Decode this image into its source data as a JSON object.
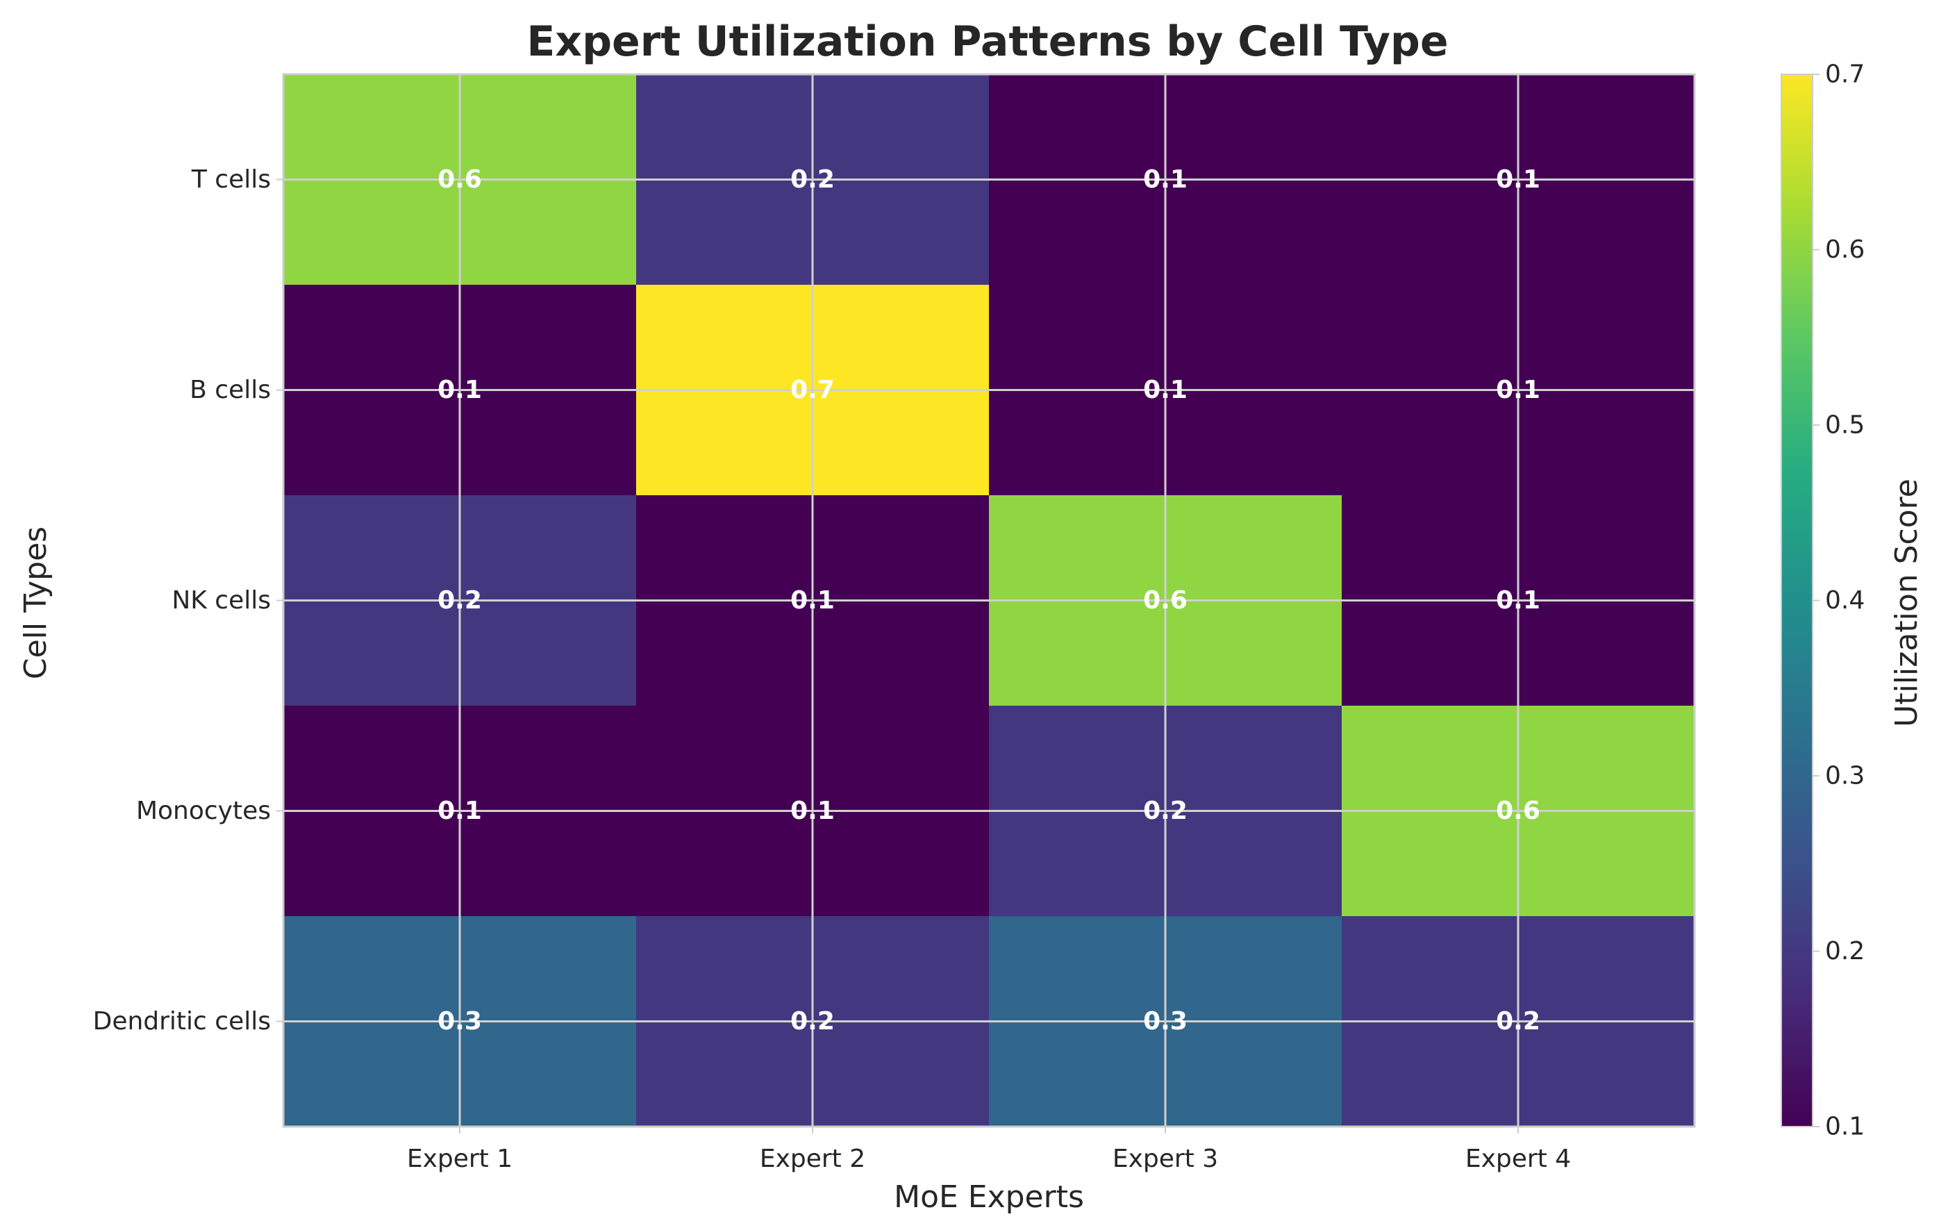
{
  "chart_data": {
    "type": "heatmap",
    "title": "Expert Utilization Patterns by Cell Type",
    "xlabel": "MoE Experts",
    "ylabel": "Cell Types",
    "x_categories": [
      "Expert 1",
      "Expert 2",
      "Expert 3",
      "Expert 4"
    ],
    "y_categories": [
      "T cells",
      "B cells",
      "NK cells",
      "Monocytes",
      "Dendritic cells"
    ],
    "values": [
      [
        0.6,
        0.2,
        0.1,
        0.1
      ],
      [
        0.1,
        0.7,
        0.1,
        0.1
      ],
      [
        0.2,
        0.1,
        0.6,
        0.1
      ],
      [
        0.1,
        0.1,
        0.2,
        0.6
      ],
      [
        0.3,
        0.2,
        0.3,
        0.2
      ]
    ],
    "value_labels": [
      [
        "0.6",
        "0.2",
        "0.1",
        "0.1"
      ],
      [
        "0.1",
        "0.7",
        "0.1",
        "0.1"
      ],
      [
        "0.2",
        "0.1",
        "0.6",
        "0.1"
      ],
      [
        "0.1",
        "0.1",
        "0.2",
        "0.6"
      ],
      [
        "0.3",
        "0.2",
        "0.3",
        "0.2"
      ]
    ],
    "colormap": "viridis",
    "color_range": [
      0.1,
      0.7
    ],
    "grid": true,
    "colorbar": {
      "label": "Utilization Score",
      "ticks": [
        0.1,
        0.2,
        0.3,
        0.4,
        0.5,
        0.6,
        0.7
      ],
      "tick_labels": [
        "0.1",
        "0.2",
        "0.3",
        "0.4",
        "0.5",
        "0.6",
        "0.7"
      ]
    }
  }
}
